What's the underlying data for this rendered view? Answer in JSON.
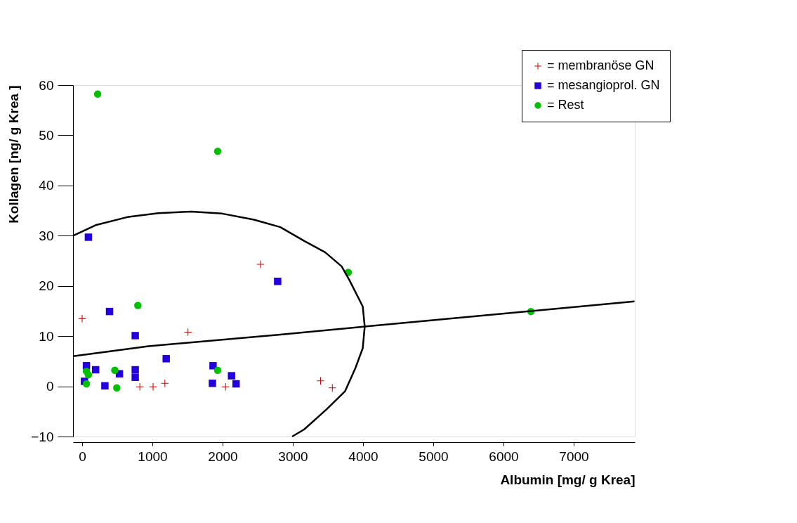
{
  "chart_data": {
    "type": "scatter",
    "xlabel": "Albumin [mg/ g Krea]",
    "ylabel": "Kollagen [ng/ g Krea ]",
    "xlim": [
      -130,
      7870
    ],
    "ylim": [
      -10,
      60
    ],
    "xticks": [
      0,
      1000,
      2000,
      3000,
      4000,
      5000,
      6000,
      7000
    ],
    "yticks": [
      -10,
      0,
      10,
      20,
      30,
      40,
      50,
      60
    ],
    "grid": false,
    "legend": "top right",
    "series": [
      {
        "name": "= membranöse GN",
        "marker": "cross",
        "color": "#d40000",
        "x": [
          0,
          1507,
          2540,
          822,
          1010,
          1178,
          2042,
          3395,
          3563
        ],
        "values": [
          13.5,
          10.8,
          24.3,
          -0.1,
          -0.1,
          0.6,
          -0.1,
          1.1,
          -0.3
        ]
      },
      {
        "name": "= mesangioprol. GN",
        "marker": "square",
        "color": "#2200dd",
        "x": [
          89,
          390,
          756,
          1197,
          2784,
          61,
          192,
          531,
          756,
          756,
          324,
          33,
          1864,
          2127,
          1855,
          2192
        ],
        "values": [
          29.7,
          14.9,
          10.1,
          5.5,
          20.9,
          4.1,
          3.3,
          2.5,
          3.3,
          1.8,
          0.1,
          1.0,
          4.1,
          2.1,
          0.6,
          0.5
        ]
      },
      {
        "name": "= Rest",
        "marker": "circle",
        "color": "#00c000",
        "x": [
          221,
          1930,
          3789,
          6390,
          793,
          465,
          493,
          1930,
          61,
          89,
          61
        ],
        "values": [
          58.2,
          46.8,
          22.7,
          14.9,
          16.1,
          3.2,
          -0.3,
          3.2,
          3.0,
          2.3,
          0.5
        ]
      },
      {
        "type": "line",
        "color": "#000000",
        "x": [
          -130,
          944,
          2822,
          4024,
          7865
        ],
        "values": [
          6.0,
          8.0,
          10.3,
          11.9,
          16.9
        ]
      },
      {
        "type": "line",
        "color": "#000000",
        "x": [
          -130,
          192,
          643,
          1084,
          1554,
          1995,
          2446,
          2822,
          3169,
          3460,
          3695,
          3808,
          3996,
          4024,
          3996,
          3893,
          3743,
          3480,
          3160,
          2990
        ],
        "values": [
          30.0,
          32.1,
          33.7,
          34.5,
          34.8,
          34.4,
          33.2,
          31.7,
          28.9,
          26.7,
          23.9,
          21.1,
          15.9,
          11.9,
          7.6,
          3.7,
          -1.0,
          -4.6,
          -8.6,
          -10.0
        ]
      }
    ]
  }
}
